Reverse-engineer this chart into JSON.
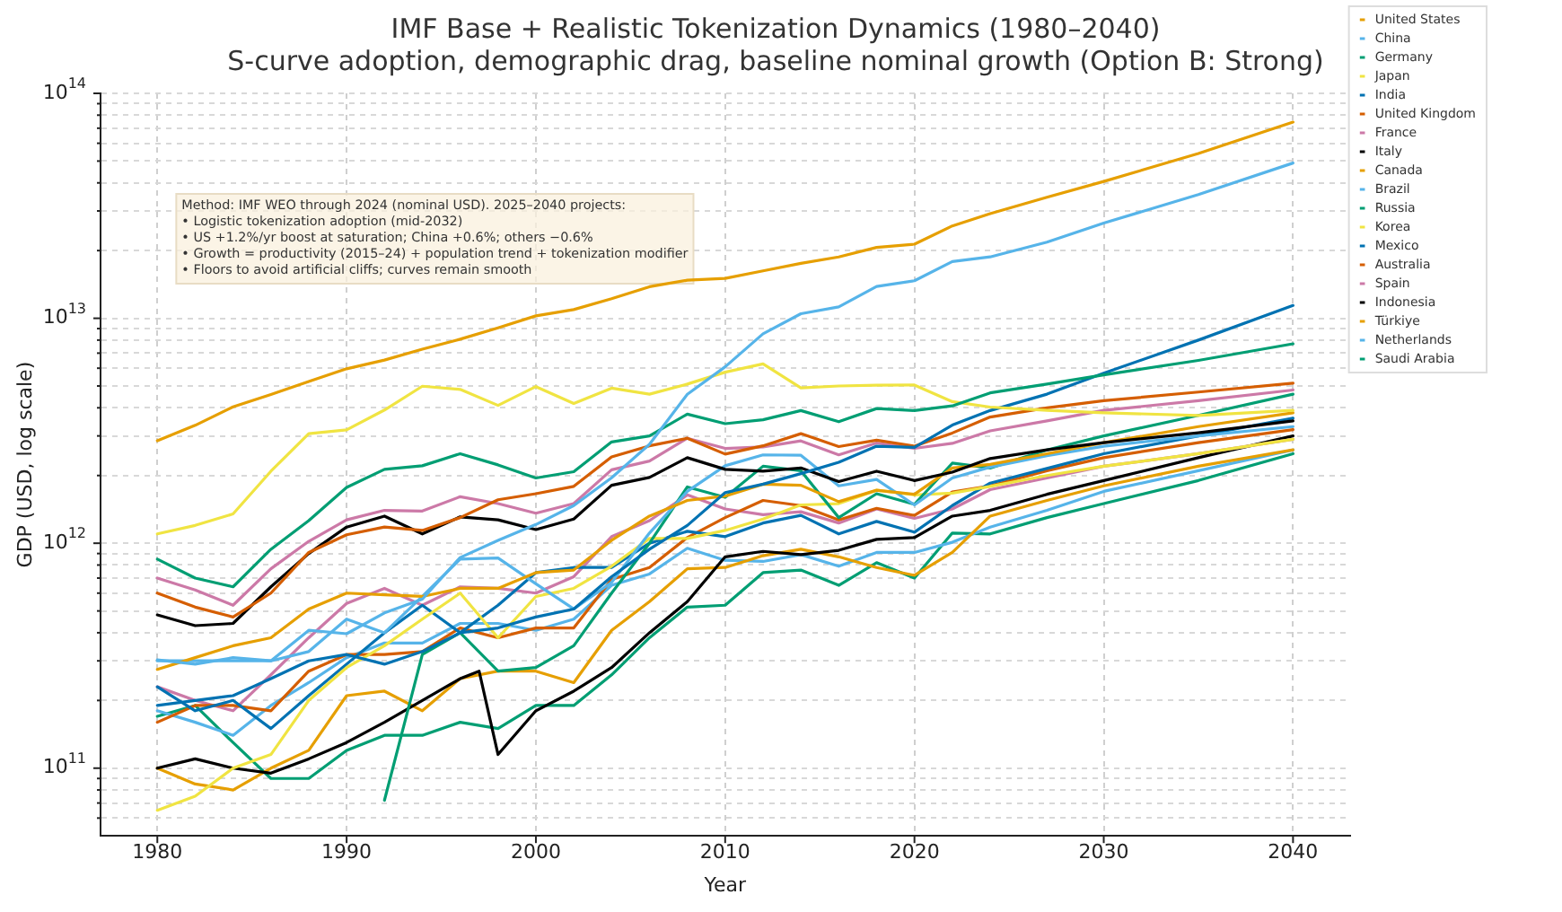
{
  "chart_data": {
    "type": "line",
    "title": "IMF Base + Realistic Tokenization Dynamics (1980–2040)",
    "subtitle": "S-curve adoption, demographic drag, baseline nominal growth (Option B: Strong)",
    "xlabel": "Year",
    "ylabel": "GDP (USD, log scale)",
    "annotations": [
      "Method: IMF WEO through 2024 (nominal USD). 2025–2040 projects:",
      "• Logistic tokenization adoption (mid-2032)",
      "• US +1.2%/yr boost at saturation; China +0.6%; others −0.6%",
      "• Growth = productivity (2015–24) + population trend + tokenization modifier",
      "• Floors to avoid artificial cliffs; curves remain smooth"
    ],
    "log": "y",
    "grid": true,
    "legend": "right",
    "marker": "none",
    "line_style": "solid",
    "xlim": [
      1977,
      2043
    ],
    "xticks": [
      1980,
      1990,
      2000,
      2010,
      2020,
      2030,
      2040
    ],
    "ylim": [
      50000000000.0,
      100000000000000.0
    ],
    "yticks": [
      {
        "value": 60000000000.0,
        "label": null
      },
      {
        "value": 70000000000.0,
        "label": null
      },
      {
        "value": 80000000000.0,
        "label": null
      },
      {
        "value": 90000000000.0,
        "label": null
      },
      {
        "value": 100000000000.0,
        "label": "10$^{11}$"
      },
      {
        "value": 200000000000.0,
        "label": null
      },
      {
        "value": 300000000000.0,
        "label": null
      },
      {
        "value": 400000000000.0,
        "label": null
      },
      {
        "value": 500000000000.0,
        "label": null
      },
      {
        "value": 600000000000.0,
        "label": null
      },
      {
        "value": 700000000000.0,
        "label": null
      },
      {
        "value": 800000000000.0,
        "label": null
      },
      {
        "value": 900000000000.0,
        "label": null
      },
      {
        "value": 1000000000000.0,
        "label": "10$^{12}$"
      },
      {
        "value": 2000000000000.0,
        "label": null
      },
      {
        "value": 3000000000000.0,
        "label": null
      },
      {
        "value": 4000000000000.0,
        "label": null
      },
      {
        "value": 5000000000000.0,
        "label": null
      },
      {
        "value": 6000000000000.0,
        "label": null
      },
      {
        "value": 7000000000000.0,
        "label": null
      },
      {
        "value": 8000000000000.0,
        "label": null
      },
      {
        "value": 9000000000000.0,
        "label": null
      },
      {
        "value": 10000000000000.0,
        "label": "10$^{13}$"
      },
      {
        "value": 20000000000000.0,
        "label": null
      },
      {
        "value": 30000000000000.0,
        "label": null
      },
      {
        "value": 40000000000000.0,
        "label": null
      },
      {
        "value": 50000000000000.0,
        "label": null
      },
      {
        "value": 60000000000000.0,
        "label": null
      },
      {
        "value": 70000000000000.0,
        "label": null
      },
      {
        "value": 80000000000000.0,
        "label": null
      },
      {
        "value": 90000000000000.0,
        "label": null
      },
      {
        "value": 100000000000000.0,
        "label": "10$^{14}$"
      }
    ],
    "x": [
      1980,
      1982,
      1984,
      1986,
      1988,
      1990,
      1992,
      1994,
      1996,
      1998,
      2000,
      2002,
      2004,
      2006,
      2008,
      2010,
      2012,
      2014,
      2016,
      2018,
      2020,
      2022,
      2024,
      2027,
      2030,
      2035,
      2040
    ],
    "series": [
      {
        "name": "United States",
        "color": "#e69f00",
        "values": [
          2857000000000.0,
          3343000000000.0,
          4037000000000.0,
          4579000000000.0,
          5236000000000.0,
          5963000000000.0,
          6520000000000.0,
          7287000000000.0,
          8073000000000.0,
          9063000000000.0,
          10251000000000.0,
          10936000000000.0,
          12217000000000.0,
          13815000000000.0,
          14770000000000.0,
          15049000000000.0,
          16254000000000.0,
          17551000000000.0,
          18745000000000.0,
          20656000000000.0,
          21354000000000.0,
          25744000000000.0,
          29180000000000.0,
          34500000000000.0,
          40600000000000.0,
          54000000000000.0,
          74500000000000.0
        ]
      },
      {
        "name": "China",
        "color": "#56b4e9",
        "values": [
          303000000000.0,
          290000000000.0,
          310000000000.0,
          300000000000.0,
          410000000000.0,
          396000000000.0,
          490000000000.0,
          564000000000.0,
          864000000000.0,
          1030000000000.0,
          1211000000000.0,
          1470000000000.0,
          1955000000000.0,
          2752000000000.0,
          4594000000000.0,
          6087000000000.0,
          8532000000000.0,
          10476000000000.0,
          11233000000000.0,
          13842000000000.0,
          14688000000000.0,
          17882000000000.0,
          18750000000000.0,
          21800000000000.0,
          26500000000000.0,
          35500000000000.0,
          49000000000000.0
        ]
      },
      {
        "name": "Germany",
        "color": "#009e73",
        "values": [
          850000000000.0,
          700000000000.0,
          640000000000.0,
          940000000000.0,
          1260000000000.0,
          1770000000000.0,
          2130000000000.0,
          2210000000000.0,
          2500000000000.0,
          2230000000000.0,
          1950000000000.0,
          2080000000000.0,
          2820000000000.0,
          3000000000000.0,
          3750000000000.0,
          3400000000000.0,
          3540000000000.0,
          3890000000000.0,
          3470000000000.0,
          3970000000000.0,
          3890000000000.0,
          4080000000000.0,
          4660000000000.0,
          5100000000000.0,
          5600000000000.0,
          6500000000000.0,
          7700000000000.0
        ]
      },
      {
        "name": "Japan",
        "color": "#f0e442",
        "values": [
          1100000000000.0,
          1200000000000.0,
          1350000000000.0,
          2090000000000.0,
          3070000000000.0,
          3190000000000.0,
          3910000000000.0,
          4990000000000.0,
          4830000000000.0,
          4100000000000.0,
          4970000000000.0,
          4180000000000.0,
          4890000000000.0,
          4600000000000.0,
          5100000000000.0,
          5760000000000.0,
          6270000000000.0,
          4900000000000.0,
          5000000000000.0,
          5040000000000.0,
          5050000000000.0,
          4260000000000.0,
          4030000000000.0,
          3900000000000.0,
          3800000000000.0,
          3700000000000.0,
          3900000000000.0
        ]
      },
      {
        "name": "India",
        "color": "#0072b2",
        "values": [
          190000000000.0,
          200000000000.0,
          210000000000.0,
          250000000000.0,
          300000000000.0,
          320000000000.0,
          290000000000.0,
          330000000000.0,
          400000000000.0,
          420000000000.0,
          470000000000.0,
          510000000000.0,
          710000000000.0,
          940000000000.0,
          1200000000000.0,
          1680000000000.0,
          1830000000000.0,
          2040000000000.0,
          2290000000000.0,
          2700000000000.0,
          2670000000000.0,
          3350000000000.0,
          3890000000000.0,
          4600000000000.0,
          5700000000000.0,
          8000000000000.0,
          11400000000000.0
        ]
      },
      {
        "name": "United Kingdom",
        "color": "#d55e00",
        "values": [
          600000000000.0,
          520000000000.0,
          470000000000.0,
          600000000000.0,
          910000000000.0,
          1090000000000.0,
          1180000000000.0,
          1140000000000.0,
          1300000000000.0,
          1560000000000.0,
          1660000000000.0,
          1790000000000.0,
          2420000000000.0,
          2710000000000.0,
          2930000000000.0,
          2490000000000.0,
          2710000000000.0,
          3070000000000.0,
          2690000000000.0,
          2870000000000.0,
          2700000000000.0,
          3090000000000.0,
          3640000000000.0,
          4000000000000.0,
          4300000000000.0,
          4700000000000.0,
          5150000000000.0
        ]
      },
      {
        "name": "France",
        "color": "#cc79a7",
        "values": [
          700000000000.0,
          620000000000.0,
          530000000000.0,
          770000000000.0,
          1020000000000.0,
          1270000000000.0,
          1400000000000.0,
          1390000000000.0,
          1610000000000.0,
          1500000000000.0,
          1360000000000.0,
          1500000000000.0,
          2120000000000.0,
          2320000000000.0,
          2930000000000.0,
          2640000000000.0,
          2680000000000.0,
          2850000000000.0,
          2470000000000.0,
          2790000000000.0,
          2640000000000.0,
          2780000000000.0,
          3160000000000.0,
          3500000000000.0,
          3900000000000.0,
          4300000000000.0,
          4800000000000.0
        ]
      },
      {
        "name": "Italy",
        "color": "#000000",
        "values": [
          480000000000.0,
          430000000000.0,
          440000000000.0,
          640000000000.0,
          900000000000.0,
          1180000000000.0,
          1320000000000.0,
          1100000000000.0,
          1310000000000.0,
          1270000000000.0,
          1150000000000.0,
          1280000000000.0,
          1810000000000.0,
          1960000000000.0,
          2400000000000.0,
          2130000000000.0,
          2090000000000.0,
          2160000000000.0,
          1880000000000.0,
          2090000000000.0,
          1900000000000.0,
          2070000000000.0,
          2380000000000.0,
          2600000000000.0,
          2800000000000.0,
          3100000000000.0,
          3500000000000.0
        ]
      },
      {
        "name": "Canada",
        "color": "#e69f00",
        "values": [
          275000000000.0,
          310000000000.0,
          350000000000.0,
          380000000000.0,
          510000000000.0,
          600000000000.0,
          590000000000.0,
          580000000000.0,
          630000000000.0,
          630000000000.0,
          740000000000.0,
          760000000000.0,
          1030000000000.0,
          1320000000000.0,
          1550000000000.0,
          1620000000000.0,
          1830000000000.0,
          1810000000000.0,
          1530000000000.0,
          1720000000000.0,
          1650000000000.0,
          2160000000000.0,
          2240000000000.0,
          2500000000000.0,
          2800000000000.0,
          3300000000000.0,
          3800000000000.0
        ]
      },
      {
        "name": "Brazil",
        "color": "#56b4e9",
        "values": [
          300000000000.0,
          300000000000.0,
          300000000000.0,
          300000000000.0,
          330000000000.0,
          460000000000.0,
          400000000000.0,
          580000000000.0,
          850000000000.0,
          860000000000.0,
          660000000000.0,
          510000000000.0,
          670000000000.0,
          1110000000000.0,
          1700000000000.0,
          2210000000000.0,
          2470000000000.0,
          2460000000000.0,
          1800000000000.0,
          1920000000000.0,
          1480000000000.0,
          1950000000000.0,
          2180000000000.0,
          2450000000000.0,
          2700000000000.0,
          3000000000000.0,
          3300000000000.0
        ]
      },
      {
        "name": "Russia",
        "color": "#009e73",
        "values": [
          null,
          null,
          null,
          null,
          null,
          null,
          72000000000.0,
          320000000000.0,
          400000000000.0,
          270000000000.0,
          280000000000.0,
          350000000000.0,
          600000000000.0,
          1000000000000.0,
          1780000000000.0,
          1600000000000.0,
          2200000000000.0,
          2100000000000.0,
          1300000000000.0,
          1660000000000.0,
          1490000000000.0,
          2270000000000.0,
          2160000000000.0,
          2600000000000.0,
          3000000000000.0,
          3700000000000.0,
          4600000000000.0
        ]
      },
      {
        "name": "Korea",
        "color": "#f0e442",
        "values": [
          65000000000.0,
          75000000000.0,
          100000000000.0,
          115000000000.0,
          200000000000.0,
          280000000000.0,
          350000000000.0,
          460000000000.0,
          600000000000.0,
          380000000000.0,
          580000000000.0,
          630000000000.0,
          790000000000.0,
          1050000000000.0,
          1050000000000.0,
          1140000000000.0,
          1280000000000.0,
          1480000000000.0,
          1500000000000.0,
          1720000000000.0,
          1640000000000.0,
          1670000000000.0,
          1790000000000.0,
          2000000000000.0,
          2200000000000.0,
          2500000000000.0,
          2900000000000.0
        ]
      },
      {
        "name": "Mexico",
        "color": "#0072b2",
        "values": [
          230000000000.0,
          180000000000.0,
          200000000000.0,
          150000000000.0,
          210000000000.0,
          290000000000.0,
          400000000000.0,
          530000000000.0,
          400000000000.0,
          530000000000.0,
          740000000000.0,
          780000000000.0,
          780000000000.0,
          1000000000000.0,
          1130000000000.0,
          1070000000000.0,
          1230000000000.0,
          1330000000000.0,
          1100000000000.0,
          1250000000000.0,
          1120000000000.0,
          1470000000000.0,
          1850000000000.0,
          2150000000000.0,
          2500000000000.0,
          3000000000000.0,
          3600000000000.0
        ]
      },
      {
        "name": "Australia",
        "color": "#d55e00",
        "values": [
          160000000000.0,
          190000000000.0,
          190000000000.0,
          180000000000.0,
          270000000000.0,
          320000000000.0,
          320000000000.0,
          330000000000.0,
          420000000000.0,
          380000000000.0,
          420000000000.0,
          420000000000.0,
          690000000000.0,
          780000000000.0,
          1060000000000.0,
          1300000000000.0,
          1550000000000.0,
          1470000000000.0,
          1270000000000.0,
          1430000000000.0,
          1330000000000.0,
          1690000000000.0,
          1800000000000.0,
          2100000000000.0,
          2400000000000.0,
          2800000000000.0,
          3200000000000.0
        ]
      },
      {
        "name": "Spain",
        "color": "#cc79a7",
        "values": [
          230000000000.0,
          200000000000.0,
          180000000000.0,
          260000000000.0,
          380000000000.0,
          540000000000.0,
          630000000000.0,
          530000000000.0,
          640000000000.0,
          630000000000.0,
          600000000000.0,
          710000000000.0,
          1070000000000.0,
          1260000000000.0,
          1640000000000.0,
          1420000000000.0,
          1340000000000.0,
          1380000000000.0,
          1230000000000.0,
          1420000000000.0,
          1290000000000.0,
          1420000000000.0,
          1730000000000.0,
          1950000000000.0,
          2200000000000.0,
          2500000000000.0,
          2900000000000.0
        ]
      },
      {
        "name": "Indonesia",
        "color": "#000000",
        "x": [
          1980,
          1982,
          1984,
          1986,
          1988,
          1990,
          1992,
          1994,
          1996,
          1997,
          1998,
          2000,
          2002,
          2004,
          2006,
          2008,
          2010,
          2012,
          2014,
          2016,
          2018,
          2020,
          2022,
          2024,
          2027,
          2030,
          2035,
          2040
        ],
        "values": [
          100000000000.0,
          110000000000.0,
          100000000000.0,
          95000000000.0,
          110000000000.0,
          130000000000.0,
          160000000000.0,
          200000000000.0,
          250000000000.0,
          270000000000.0,
          115000000000.0,
          180000000000.0,
          220000000000.0,
          280000000000.0,
          400000000000.0,
          550000000000.0,
          870000000000.0,
          920000000000.0,
          890000000000.0,
          930000000000.0,
          1040000000000.0,
          1060000000000.0,
          1320000000000.0,
          1400000000000.0,
          1650000000000.0,
          1900000000000.0,
          2400000000000.0,
          3000000000000.0
        ]
      },
      {
        "name": "Türkiye",
        "color": "#e69f00",
        "values": [
          100000000000.0,
          85000000000.0,
          80000000000.0,
          100000000000.0,
          120000000000.0,
          210000000000.0,
          220000000000.0,
          180000000000.0,
          250000000000.0,
          270000000000.0,
          270000000000.0,
          240000000000.0,
          410000000000.0,
          550000000000.0,
          770000000000.0,
          780000000000.0,
          880000000000.0,
          940000000000.0,
          870000000000.0,
          780000000000.0,
          720000000000.0,
          910000000000.0,
          1320000000000.0,
          1550000000000.0,
          1800000000000.0,
          2200000000000.0,
          2600000000000.0
        ]
      },
      {
        "name": "Netherlands",
        "color": "#56b4e9",
        "values": [
          180000000000.0,
          160000000000.0,
          140000000000.0,
          190000000000.0,
          240000000000.0,
          310000000000.0,
          360000000000.0,
          360000000000.0,
          440000000000.0,
          440000000000.0,
          410000000000.0,
          460000000000.0,
          650000000000.0,
          730000000000.0,
          950000000000.0,
          840000000000.0,
          830000000000.0,
          890000000000.0,
          790000000000.0,
          910000000000.0,
          910000000000.0,
          1010000000000.0,
          1180000000000.0,
          1400000000000.0,
          1700000000000.0,
          2100000000000.0,
          2600000000000.0
        ]
      },
      {
        "name": "Saudi Arabia",
        "color": "#009e73",
        "values": [
          170000000000.0,
          190000000000.0,
          130000000000.0,
          90000000000.0,
          90000000000.0,
          120000000000.0,
          140000000000.0,
          140000000000.0,
          160000000000.0,
          150000000000.0,
          190000000000.0,
          190000000000.0,
          260000000000.0,
          380000000000.0,
          520000000000.0,
          530000000000.0,
          740000000000.0,
          760000000000.0,
          650000000000.0,
          820000000000.0,
          700000000000.0,
          1110000000000.0,
          1100000000000.0,
          1300000000000.0,
          1500000000000.0,
          1900000000000.0,
          2500000000000.0
        ]
      }
    ]
  }
}
